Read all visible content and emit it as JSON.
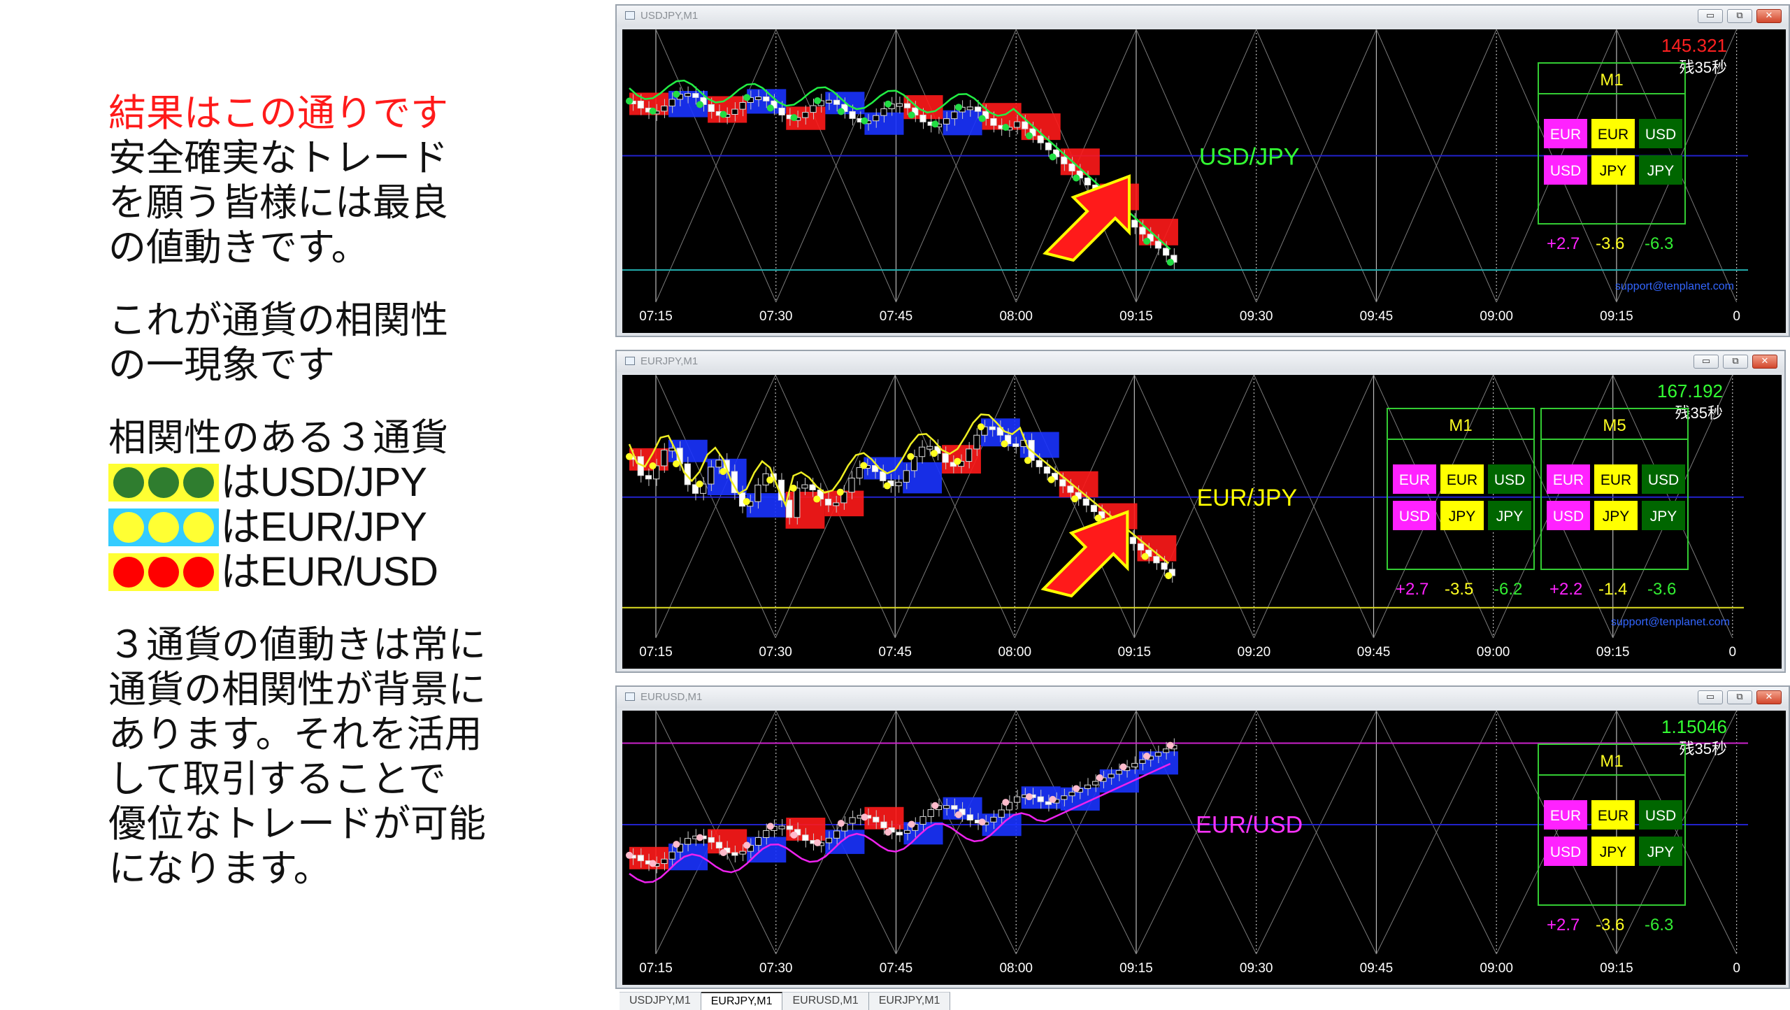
{
  "left_text": {
    "headline": "結果はこの通りです",
    "para1_lines": [
      "安全確実なトレード",
      "を願う皆様には最良",
      "の値動きです。"
    ],
    "para2_lines": [
      "これが通貨の相関性",
      "の一現象です"
    ],
    "para3_heading": "相関性のある３通貨",
    "legend": [
      {
        "label": "はUSD/JPY",
        "dot_color": "#2f7d2f",
        "bg_color": "#ffff33"
      },
      {
        "label": "はEUR/JPY",
        "dot_color": "#ffff33",
        "bg_color": "#33ccff"
      },
      {
        "label": "はEUR/USD",
        "dot_color": "#ff0000",
        "bg_color": "#ffff33"
      }
    ],
    "para4_lines": [
      "３通貨の値動きは常に",
      "通貨の相関性が背景に",
      "あります。それを活用",
      "して取引することで",
      "優位なトレードが可能",
      "になります。"
    ]
  },
  "windows": [
    {
      "title": "USDJPY,M1",
      "symbol_label": "USD/JPY",
      "symbol_color": "#33ff33",
      "price": "145.321",
      "price_color": "#ff2020",
      "countdown": "残35秒",
      "panels": [
        {
          "tf": "M1",
          "row1": [
            "EUR",
            "EUR",
            "USD"
          ],
          "row2": [
            "USD",
            "JPY",
            "JPY"
          ],
          "values": [
            "+2.7",
            "-3.6",
            "-6.3"
          ]
        }
      ],
      "support": "support@tenplanet.com",
      "x_ticks": [
        "07:15",
        "07:30",
        "07:45",
        "08:00",
        "09:15",
        "09:30",
        "09:45",
        "09:00",
        "09:15",
        "0"
      ],
      "show_arrow": true
    },
    {
      "title": "EURJPY,M1",
      "symbol_label": "EUR/JPY",
      "symbol_color": "#ffff00",
      "price": "167.192",
      "price_color": "#33ff33",
      "countdown": "残35秒",
      "panels": [
        {
          "tf": "M1",
          "row1": [
            "EUR",
            "EUR",
            "USD"
          ],
          "row2": [
            "USD",
            "JPY",
            "JPY"
          ],
          "values": [
            "+2.7",
            "-3.5",
            "-6.2"
          ]
        },
        {
          "tf": "M5",
          "row1": [
            "EUR",
            "EUR",
            "USD"
          ],
          "row2": [
            "USD",
            "JPY",
            "JPY"
          ],
          "values": [
            "+2.2",
            "-1.4",
            "-3.6"
          ]
        }
      ],
      "support": "support@tenplanet.com",
      "x_ticks": [
        "07:15",
        "07:30",
        "07:45",
        "08:00",
        "09:15",
        "09:20",
        "09:45",
        "09:00",
        "09:15",
        "0"
      ],
      "show_arrow": true
    },
    {
      "title": "EURUSD,M1",
      "symbol_label": "EUR/USD",
      "symbol_color": "#ff33ff",
      "price": "1.15046",
      "price_color": "#33ff33",
      "countdown": "残35秒",
      "panels": [
        {
          "tf": "M1",
          "row1": [
            "EUR",
            "EUR",
            "USD"
          ],
          "row2": [
            "USD",
            "JPY",
            "JPY"
          ],
          "values": [
            "+2.7",
            "-3.6",
            "-6.3"
          ]
        }
      ],
      "support": "",
      "x_ticks": [
        "07:15",
        "07:30",
        "07:45",
        "08:00",
        "09:15",
        "09:30",
        "09:45",
        "09:00",
        "09:15",
        "0"
      ],
      "show_arrow": false
    }
  ],
  "window_buttons": {
    "minimize": "▭",
    "restore": "⧉",
    "close": "✕"
  },
  "tabs": [
    "USDJPY,M1",
    "EURJPY,M1",
    "EURUSD,M1",
    "EURJPY,M1"
  ],
  "active_tab": 1,
  "icons": {
    "window_icon": "chart-window-icon",
    "arrow": "red-arrow-icon"
  }
}
